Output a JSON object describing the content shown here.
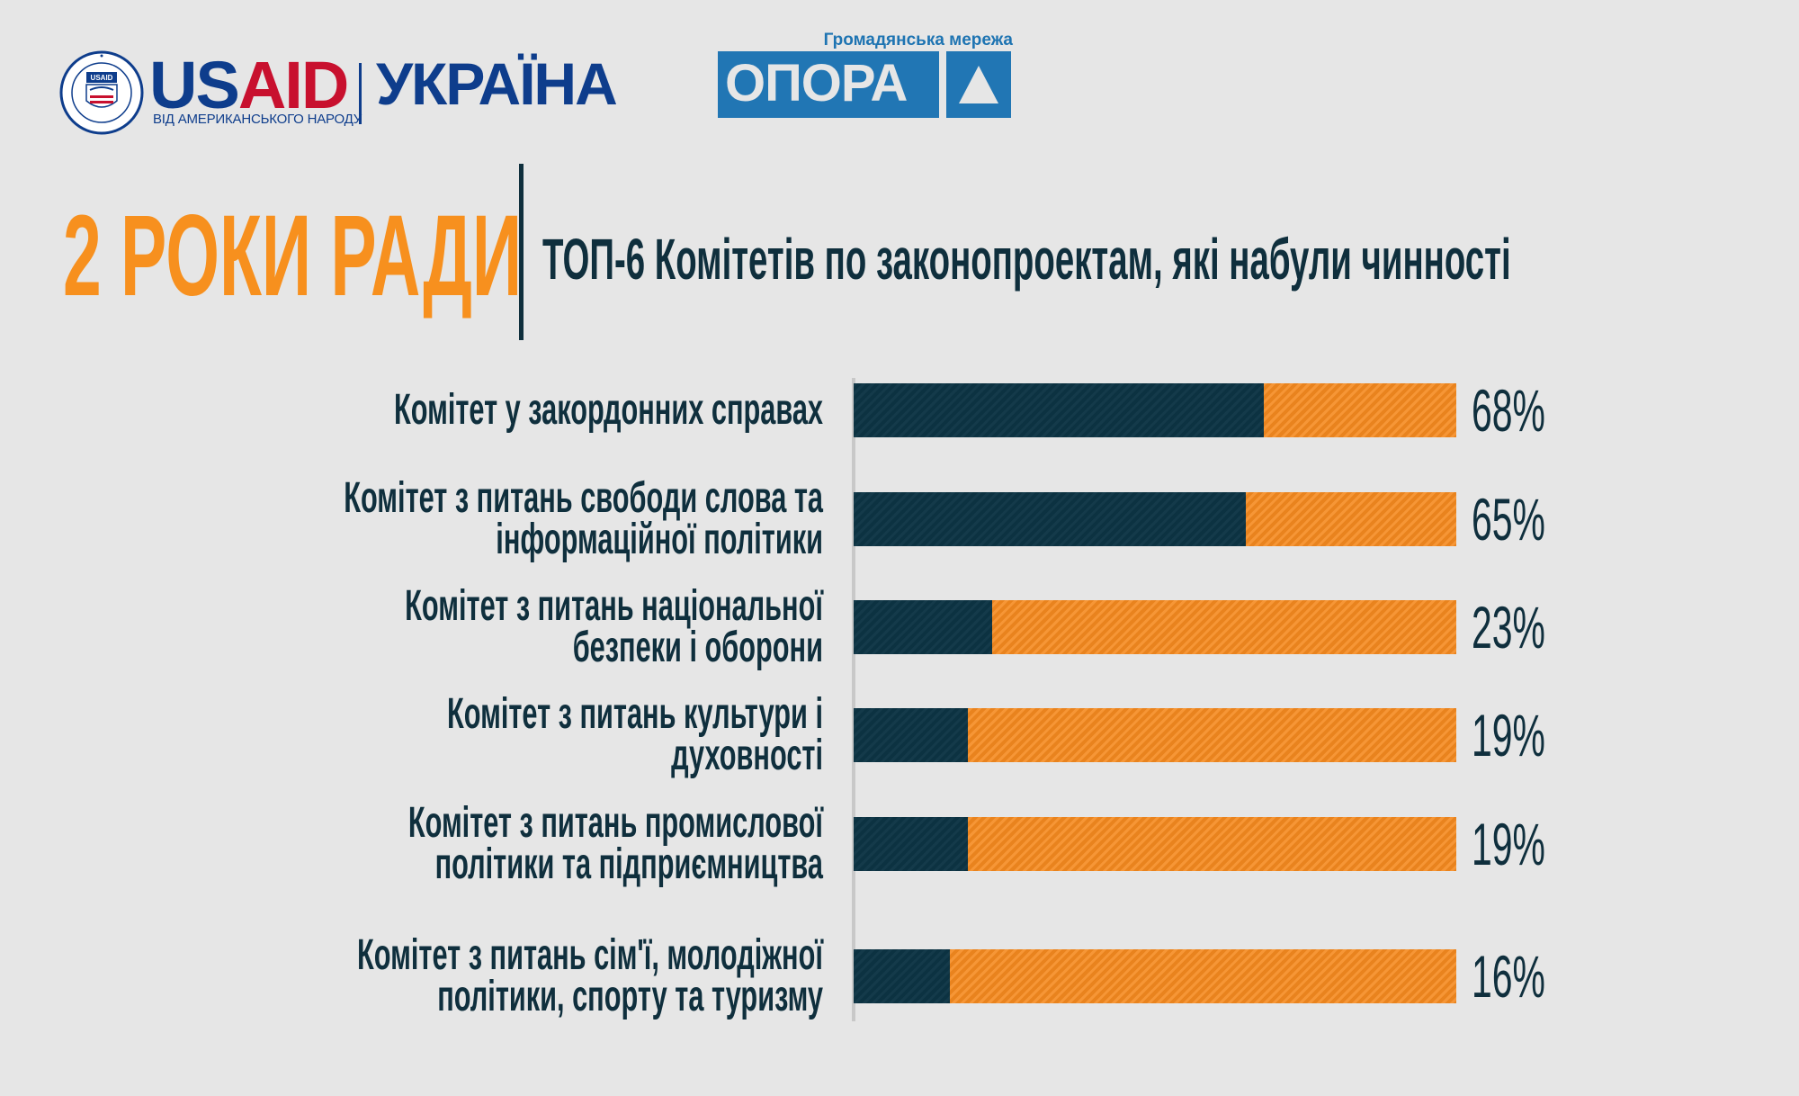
{
  "logos": {
    "usaid": {
      "seal_text": "USAID",
      "word_us": "US",
      "word_aid": "AID",
      "tagline": "ВІД АМЕРИКАНСЬКОГО НАРОДУ",
      "country": "УКРАЇНА"
    },
    "opora": {
      "tagline": "Громадянська мережа",
      "name": "ОПОРА"
    }
  },
  "header": {
    "title": "2 РОКИ РАДИ",
    "subtitle": "ТОП-6 Комітетів по законопроектам, які набули чинності"
  },
  "colors": {
    "accent_orange": "#f7901e",
    "bar_dark": "#0c3444",
    "bar_orange": "#f58a1f",
    "text_dark": "#0f2f3d",
    "background": "#e6e6e6",
    "usaid_blue": "#0e3d8c",
    "usaid_red": "#c8102e",
    "opora_blue": "#2176b4"
  },
  "chart_data": {
    "type": "bar",
    "orientation": "horizontal",
    "stacked": true,
    "categories": [
      "Комітет у закордонних справах",
      "Комітет з питань свободи слова та інформаційної політики",
      "Комітет з питань національної безпеки і оборони",
      "Комітет з питань культури і духовності",
      "Комітет з питань промислової політики та підприємництва",
      "Комітет з питань сім'ї, молодіжної політики, спорту та туризму"
    ],
    "values": [
      68,
      65,
      23,
      19,
      19,
      16
    ],
    "value_labels": [
      "68%",
      "65%",
      "23%",
      "19%",
      "19%",
      "16%"
    ],
    "xlim": [
      0,
      100
    ],
    "grid": false,
    "legend": "none"
  }
}
